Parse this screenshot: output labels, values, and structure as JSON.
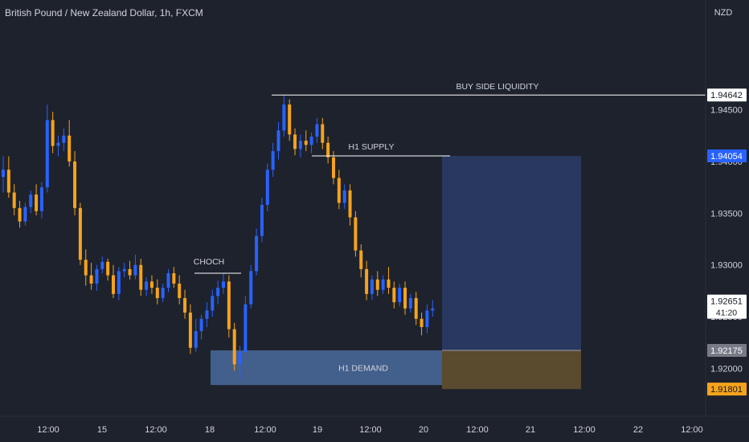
{
  "header": {
    "title": "British Pound / New Zealand Dollar, 1h, FXCM"
  },
  "axis": {
    "currency": "NZD",
    "y_ticks": [
      "1.94500",
      "1.94000",
      "1.93500",
      "1.93000",
      "1.92500",
      "1.92000"
    ],
    "y_tick_values": [
      1.945,
      1.94,
      1.935,
      1.93,
      1.925,
      1.92
    ],
    "x_ticks": [
      "12:00",
      "15",
      "12:00",
      "18",
      "12:00",
      "19",
      "12:00",
      "20",
      "12:00",
      "21",
      "12:00",
      "22",
      "12:00"
    ]
  },
  "price_tags": [
    {
      "label": "1.94642",
      "value": 1.94642,
      "bg": "#ffffff",
      "fg": "#131722"
    },
    {
      "label": "1.94054",
      "value": 1.94054,
      "bg": "#2962ff",
      "fg": "#ffffff"
    },
    {
      "label": "1.92651",
      "sub": "41:20",
      "value": 1.92651,
      "bg": "#ffffff",
      "fg": "#131722"
    },
    {
      "label": "1.92175",
      "value": 1.92175,
      "bg": "#787b86",
      "fg": "#ffffff"
    },
    {
      "label": "1.91801",
      "value": 1.91801,
      "bg": "#f6a31c",
      "fg": "#131722"
    }
  ],
  "annotations": {
    "buy_side": "BUY SIDE LIQUIDITY",
    "h1_supply": "H1 SUPPLY",
    "choch": "CHOCH",
    "h1_demand": "H1 DEMAND"
  },
  "colors": {
    "background": "#1e222d",
    "bull": "#2962ff",
    "bear": "#f6a31c",
    "demand_zone": "#4a6a9c",
    "target_zone": "#28385f",
    "stop_zone": "#5a4a2e"
  },
  "chart_data": {
    "type": "candlestick",
    "symbol": "British Pound / New Zealand Dollar, 1h, FXCM",
    "ylim": [
      1.9165,
      1.9495
    ],
    "series": [
      {
        "ohlc": [
          [
            1.9385,
            1.9405,
            1.937,
            1.9392
          ],
          [
            1.9392,
            1.9405,
            1.9365,
            1.937
          ],
          [
            1.937,
            1.9378,
            1.9348,
            1.9355
          ],
          [
            1.9355,
            1.9362,
            1.9336,
            1.9342
          ],
          [
            1.9342,
            1.936,
            1.9338,
            1.9356
          ],
          [
            1.9356,
            1.9372,
            1.935,
            1.9368
          ],
          [
            1.9368,
            1.9378,
            1.9348,
            1.9352
          ],
          [
            1.9352,
            1.938,
            1.9345,
            1.9375
          ],
          [
            1.9375,
            1.9455,
            1.937,
            1.944
          ],
          [
            1.944,
            1.9448,
            1.9408,
            1.9415
          ],
          [
            1.9415,
            1.9425,
            1.9405,
            1.9418
          ],
          [
            1.9418,
            1.9432,
            1.941,
            1.9425
          ],
          [
            1.9425,
            1.944,
            1.9395,
            1.94
          ],
          [
            1.94,
            1.941,
            1.9348,
            1.9355
          ],
          [
            1.9355,
            1.936,
            1.93,
            1.9305
          ],
          [
            1.9305,
            1.9315,
            1.928,
            1.929
          ],
          [
            1.929,
            1.9302,
            1.9276,
            1.9282
          ],
          [
            1.9282,
            1.93,
            1.9275,
            1.9296
          ],
          [
            1.9296,
            1.9308,
            1.9292,
            1.9303
          ],
          [
            1.9303,
            1.9306,
            1.9285,
            1.929
          ],
          [
            1.929,
            1.93,
            1.9268,
            1.9272
          ],
          [
            1.9272,
            1.9298,
            1.9266,
            1.9294
          ],
          [
            1.9294,
            1.9302,
            1.9288,
            1.9296
          ],
          [
            1.9296,
            1.9304,
            1.9286,
            1.929
          ],
          [
            1.929,
            1.931,
            1.9286,
            1.93
          ],
          [
            1.93,
            1.9306,
            1.927,
            1.9276
          ],
          [
            1.9276,
            1.9288,
            1.927,
            1.9284
          ],
          [
            1.9284,
            1.929,
            1.9272,
            1.9278
          ],
          [
            1.9278,
            1.9286,
            1.9262,
            1.9268
          ],
          [
            1.9268,
            1.9282,
            1.9264,
            1.9278
          ],
          [
            1.9278,
            1.9296,
            1.9274,
            1.9292
          ],
          [
            1.9292,
            1.9298,
            1.9278,
            1.9282
          ],
          [
            1.9282,
            1.929,
            1.9262,
            1.9268
          ],
          [
            1.9268,
            1.9276,
            1.9248,
            1.9254
          ],
          [
            1.9254,
            1.9262,
            1.9214,
            1.922
          ],
          [
            1.922,
            1.9248,
            1.9216,
            1.9236
          ],
          [
            1.9236,
            1.9252,
            1.9228,
            1.9248
          ],
          [
            1.9248,
            1.9264,
            1.924,
            1.9256
          ],
          [
            1.9256,
            1.9276,
            1.925,
            1.927
          ],
          [
            1.927,
            1.9285,
            1.9262,
            1.9278
          ],
          [
            1.9278,
            1.9292,
            1.9272,
            1.9284
          ],
          [
            1.9284,
            1.929,
            1.923,
            1.9238
          ],
          [
            1.9238,
            1.9244,
            1.9198,
            1.9204
          ],
          [
            1.9204,
            1.9222,
            1.919,
            1.9216
          ],
          [
            1.9216,
            1.927,
            1.9212,
            1.9262
          ],
          [
            1.9262,
            1.93,
            1.9258,
            1.9294
          ],
          [
            1.9294,
            1.9335,
            1.929,
            1.9328
          ],
          [
            1.9328,
            1.9365,
            1.9322,
            1.9358
          ],
          [
            1.9358,
            1.9398,
            1.9352,
            1.9392
          ],
          [
            1.9392,
            1.9418,
            1.9385,
            1.941
          ],
          [
            1.941,
            1.9438,
            1.9402,
            1.943
          ],
          [
            1.943,
            1.9464,
            1.9424,
            1.9455
          ],
          [
            1.9455,
            1.946,
            1.942,
            1.9426
          ],
          [
            1.9426,
            1.9432,
            1.9406,
            1.9412
          ],
          [
            1.9412,
            1.9426,
            1.9404,
            1.942
          ],
          [
            1.942,
            1.943,
            1.941,
            1.9416
          ],
          [
            1.9416,
            1.9428,
            1.9408,
            1.9424
          ],
          [
            1.9424,
            1.9442,
            1.9418,
            1.9436
          ],
          [
            1.9436,
            1.9442,
            1.9412,
            1.9418
          ],
          [
            1.9418,
            1.9424,
            1.9398,
            1.9404
          ],
          [
            1.9404,
            1.941,
            1.9378,
            1.9384
          ],
          [
            1.9384,
            1.9392,
            1.9354,
            1.936
          ],
          [
            1.936,
            1.9378,
            1.9354,
            1.9372
          ],
          [
            1.9372,
            1.9378,
            1.9338,
            1.9346
          ],
          [
            1.9346,
            1.9352,
            1.9308,
            1.9314
          ],
          [
            1.9314,
            1.932,
            1.9288,
            1.9296
          ],
          [
            1.9296,
            1.9304,
            1.9266,
            1.9272
          ],
          [
            1.9272,
            1.929,
            1.9266,
            1.9286
          ],
          [
            1.9286,
            1.9294,
            1.927,
            1.9276
          ],
          [
            1.9276,
            1.929,
            1.9272,
            1.9286
          ],
          [
            1.9286,
            1.9298,
            1.9272,
            1.9278
          ],
          [
            1.9278,
            1.9284,
            1.9258,
            1.9264
          ],
          [
            1.9264,
            1.9282,
            1.926,
            1.9278
          ],
          [
            1.9278,
            1.9284,
            1.9252,
            1.9258
          ],
          [
            1.9258,
            1.9272,
            1.9254,
            1.9268
          ],
          [
            1.9268,
            1.9274,
            1.9242,
            1.9248
          ],
          [
            1.9248,
            1.9254,
            1.9232,
            1.924
          ],
          [
            1.924,
            1.9262,
            1.9234,
            1.9256
          ],
          [
            1.9256,
            1.9266,
            1.925,
            1.9258
          ]
        ]
      }
    ],
    "levels": [
      {
        "name": "BUY SIDE LIQUIDITY",
        "price": 1.94642
      },
      {
        "name": "H1 SUPPLY",
        "price": 1.94054
      },
      {
        "name": "CHOCH",
        "price": 1.9292
      }
    ],
    "zones": [
      {
        "name": "H1 DEMAND",
        "top": 1.92175,
        "bottom": 1.9184
      },
      {
        "name": "target",
        "top": 1.94054,
        "bottom": 1.92175
      },
      {
        "name": "stop",
        "top": 1.92175,
        "bottom": 1.91801
      }
    ],
    "grid": false
  }
}
